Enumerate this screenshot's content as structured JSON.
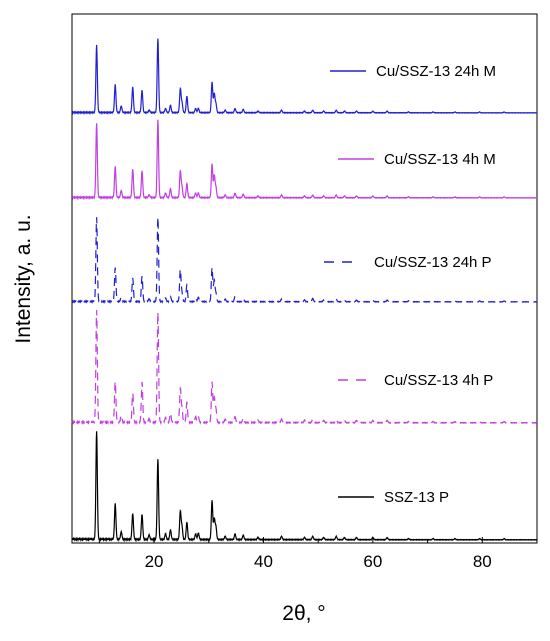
{
  "chart_data": {
    "type": "line",
    "xlabel": "2θ, °",
    "ylabel": "Intensity, a. u.",
    "xlim": [
      5,
      90
    ],
    "x_ticks": [
      20,
      40,
      60,
      80
    ],
    "x_tick_labels": [
      "20",
      "40",
      "60",
      "80"
    ],
    "y_ticks_shown": false,
    "grid": false,
    "legend_placement": "inline beside each trace",
    "peak_positions_2theta": [
      9.5,
      12.9,
      14.0,
      16.1,
      17.8,
      19.1,
      20.7,
      22.1,
      23.0,
      24.8,
      25.1,
      26.0,
      27.6,
      28.1,
      30.6,
      31.0,
      31.3,
      33.0,
      34.8,
      36.3,
      39.0,
      43.3,
      47.5,
      49.0,
      51.0,
      53.3,
      54.8,
      57.0,
      60.0,
      62.6,
      66.5,
      71.0,
      75.0,
      79.5,
      84.0
    ],
    "series": [
      {
        "name": "SSZ-13 P",
        "color": "#000000",
        "line_style": "solid",
        "peak_intensities": [
          1.0,
          0.33,
          0.07,
          0.24,
          0.23,
          0.04,
          0.74,
          0.05,
          0.09,
          0.26,
          0.12,
          0.16,
          0.05,
          0.06,
          0.36,
          0.19,
          0.12,
          0.03,
          0.05,
          0.04,
          0.02,
          0.03,
          0.02,
          0.03,
          0.02,
          0.03,
          0.02,
          0.02,
          0.02,
          0.02,
          0.01,
          0.01,
          0.01,
          0.01,
          0.01
        ]
      },
      {
        "name": "Cu/SSZ-13 4h P",
        "color": "#c040e0",
        "line_style": "dashed",
        "peak_intensities": [
          1.0,
          0.36,
          0.06,
          0.26,
          0.36,
          0.03,
          0.98,
          0.04,
          0.08,
          0.3,
          0.12,
          0.18,
          0.05,
          0.05,
          0.36,
          0.22,
          0.12,
          0.03,
          0.05,
          0.04,
          0.02,
          0.03,
          0.02,
          0.03,
          0.02,
          0.03,
          0.02,
          0.02,
          0.02,
          0.02,
          0.01,
          0.01,
          0.01,
          0.01,
          0.01
        ]
      },
      {
        "name": "Cu/SSZ-13 24h P",
        "color": "#2020d0",
        "line_style": "dashed",
        "peak_intensities": [
          1.0,
          0.4,
          0.05,
          0.28,
          0.3,
          0.03,
          1.0,
          0.04,
          0.06,
          0.38,
          0.1,
          0.2,
          0.04,
          0.05,
          0.4,
          0.25,
          0.1,
          0.03,
          0.06,
          0.04,
          0.02,
          0.03,
          0.02,
          0.04,
          0.02,
          0.03,
          0.02,
          0.02,
          0.02,
          0.02,
          0.01,
          0.01,
          0.01,
          0.01,
          0.01
        ]
      },
      {
        "name": "Cu/SSZ-13 4h M",
        "color": "#c040e0",
        "line_style": "solid",
        "peak_intensities": [
          0.84,
          0.35,
          0.08,
          0.32,
          0.3,
          0.03,
          0.88,
          0.05,
          0.1,
          0.3,
          0.12,
          0.16,
          0.05,
          0.05,
          0.38,
          0.25,
          0.12,
          0.03,
          0.05,
          0.04,
          0.02,
          0.03,
          0.02,
          0.03,
          0.02,
          0.03,
          0.02,
          0.02,
          0.02,
          0.02,
          0.01,
          0.01,
          0.01,
          0.01,
          0.01
        ]
      },
      {
        "name": "Cu/SSZ-13 24h M",
        "color": "#2020d0",
        "line_style": "solid",
        "peak_intensities": [
          0.82,
          0.34,
          0.08,
          0.31,
          0.27,
          0.03,
          0.9,
          0.05,
          0.09,
          0.29,
          0.12,
          0.2,
          0.05,
          0.05,
          0.37,
          0.23,
          0.11,
          0.03,
          0.05,
          0.04,
          0.02,
          0.03,
          0.02,
          0.03,
          0.02,
          0.03,
          0.02,
          0.02,
          0.02,
          0.02,
          0.01,
          0.01,
          0.01,
          0.01,
          0.01
        ]
      }
    ]
  }
}
